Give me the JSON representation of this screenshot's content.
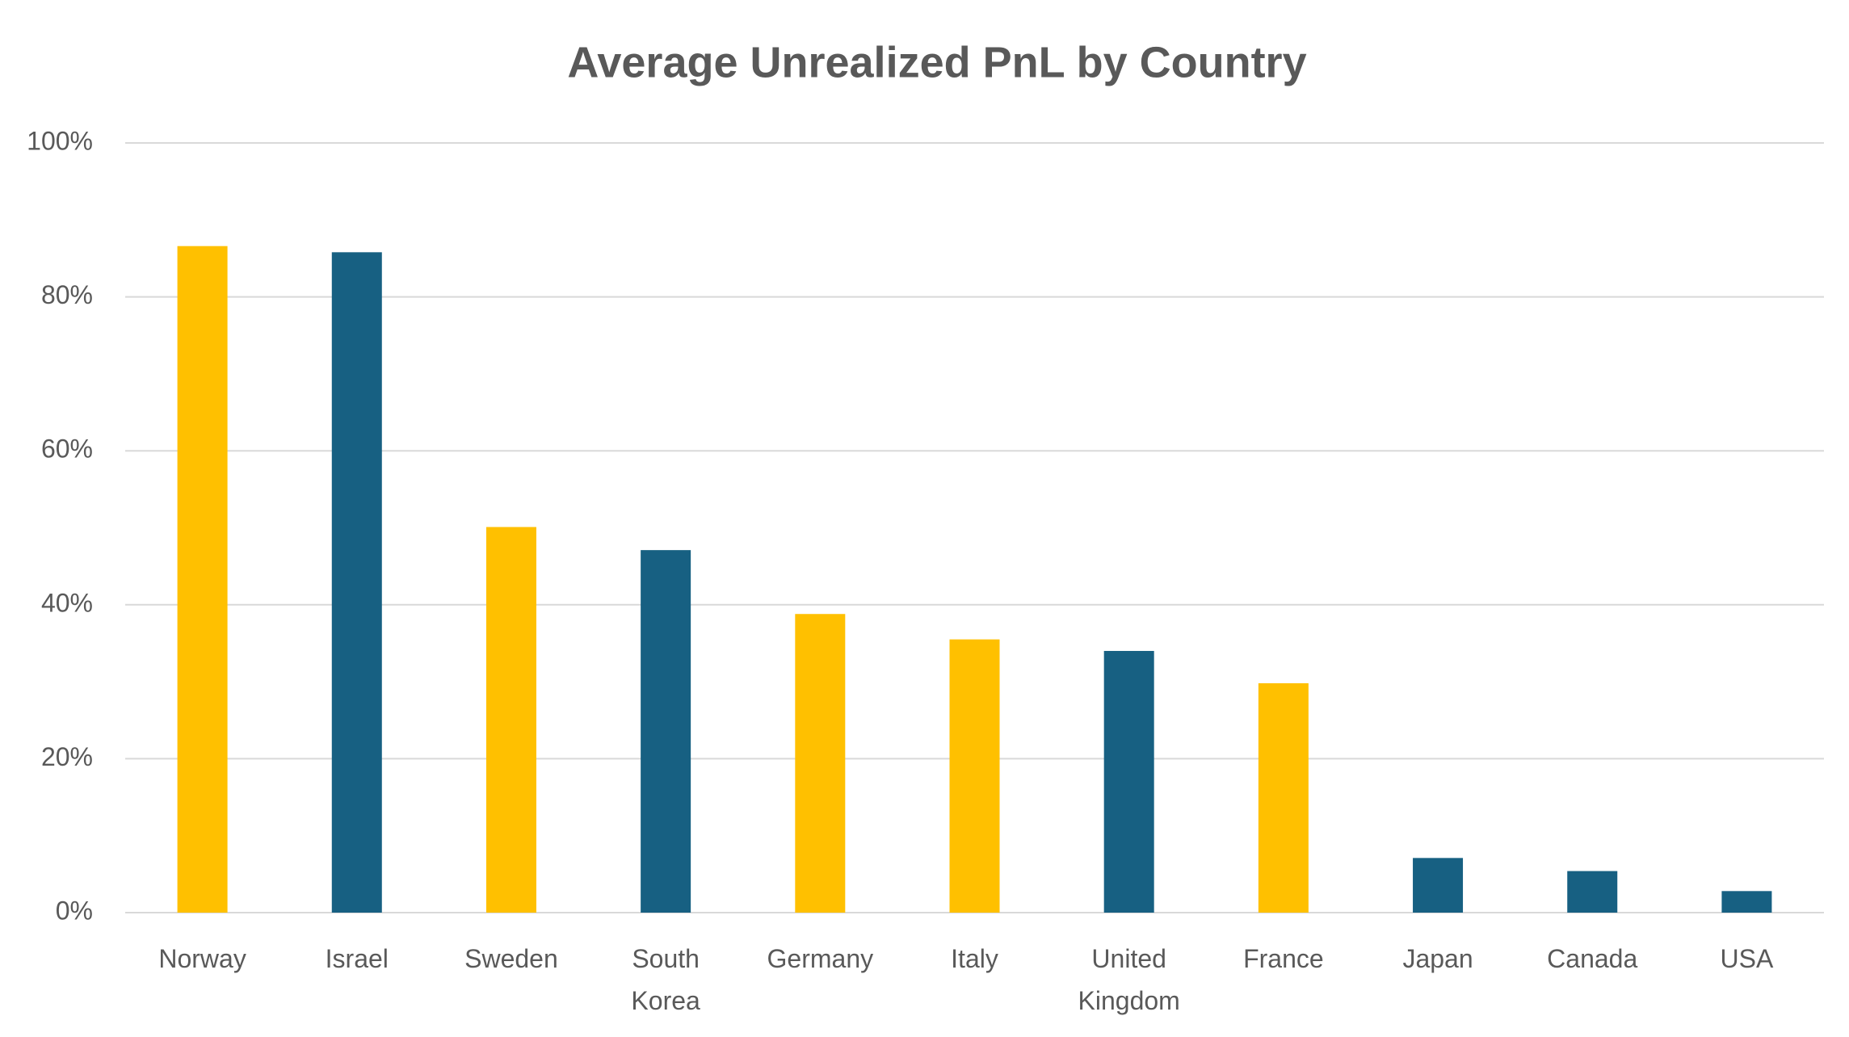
{
  "chart_data": {
    "type": "bar",
    "title": "Average Unrealized PnL by Country",
    "categories": [
      "Norway",
      "Israel",
      "Sweden",
      "South Korea",
      "Germany",
      "Italy",
      "United Kingdom",
      "France",
      "Japan",
      "Canada",
      "USA"
    ],
    "values": [
      86.6,
      85.8,
      50.1,
      47.1,
      38.8,
      35.5,
      34.0,
      29.8,
      7.1,
      5.4,
      2.8
    ],
    "colors": [
      "#ffc000",
      "#176082",
      "#ffc000",
      "#176082",
      "#ffc000",
      "#ffc000",
      "#176082",
      "#ffc000",
      "#176082",
      "#176082",
      "#176082"
    ],
    "ylim": [
      0,
      100
    ],
    "yticks": [
      {
        "value": 0,
        "label": "0%"
      },
      {
        "value": 20,
        "label": "20%"
      },
      {
        "value": 40,
        "label": "40%"
      },
      {
        "value": 60,
        "label": "60%"
      },
      {
        "value": 80,
        "label": "80%"
      },
      {
        "value": 100,
        "label": "100%"
      }
    ],
    "grid": true
  }
}
